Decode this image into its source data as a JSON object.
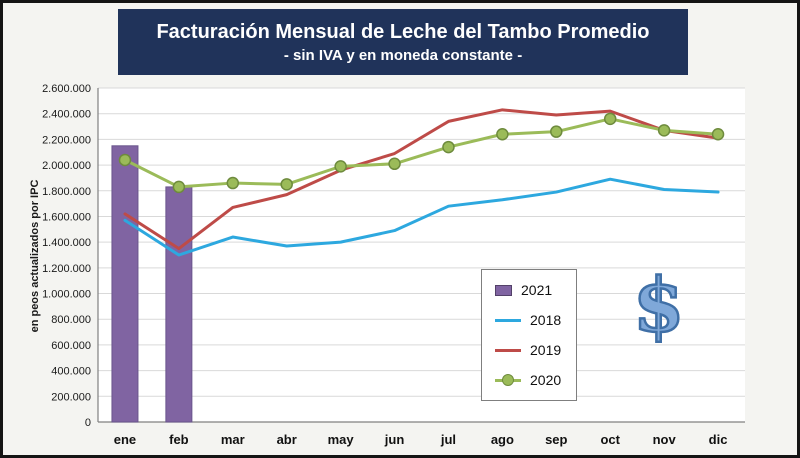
{
  "decorations": {
    "dollar_glyph": "$",
    "dollar_fill": "#7FA8D9",
    "dollar_outline": "#3F6FA6"
  },
  "colors": {
    "title_background": "#20335A",
    "figure_background": "#F4F4F1",
    "plot_background": "#FFFFFF",
    "gridline": "#D9D9D9",
    "axis_line": "#808080"
  },
  "chart_data": {
    "type": "bar+line",
    "title": "Facturación Mensual de Leche del Tambo Promedio",
    "subtitle": "- sin IVA y en moneda constante -",
    "ylabel": "en peos actualizados por IPC",
    "xlabel": "",
    "categories": [
      "ene",
      "feb",
      "mar",
      "abr",
      "may",
      "jun",
      "jul",
      "ago",
      "sep",
      "oct",
      "nov",
      "dic"
    ],
    "ylim": [
      0,
      2600000
    ],
    "ytick_step": 200000,
    "grid": true,
    "legend_position": "inside-center-right",
    "series": [
      {
        "name": "2021",
        "type": "bar",
        "color": "#8064A2",
        "values": [
          2150000,
          1830000,
          null,
          null,
          null,
          null,
          null,
          null,
          null,
          null,
          null,
          null
        ]
      },
      {
        "name": "2018",
        "type": "line",
        "color": "#2DA8DF",
        "values": [
          1570000,
          1300000,
          1440000,
          1370000,
          1400000,
          1490000,
          1680000,
          1730000,
          1790000,
          1890000,
          1810000,
          1790000
        ]
      },
      {
        "name": "2019",
        "type": "line",
        "color": "#BE4B48",
        "values": [
          1620000,
          1350000,
          1670000,
          1770000,
          1960000,
          2090000,
          2340000,
          2430000,
          2390000,
          2420000,
          2270000,
          2210000
        ]
      },
      {
        "name": "2020",
        "type": "line",
        "marker": true,
        "color": "#9BBB59",
        "marker_stroke": "#6E8B3D",
        "values": [
          2040000,
          1830000,
          1860000,
          1850000,
          1990000,
          2010000,
          2140000,
          2240000,
          2260000,
          2360000,
          2270000,
          2240000
        ]
      }
    ]
  }
}
